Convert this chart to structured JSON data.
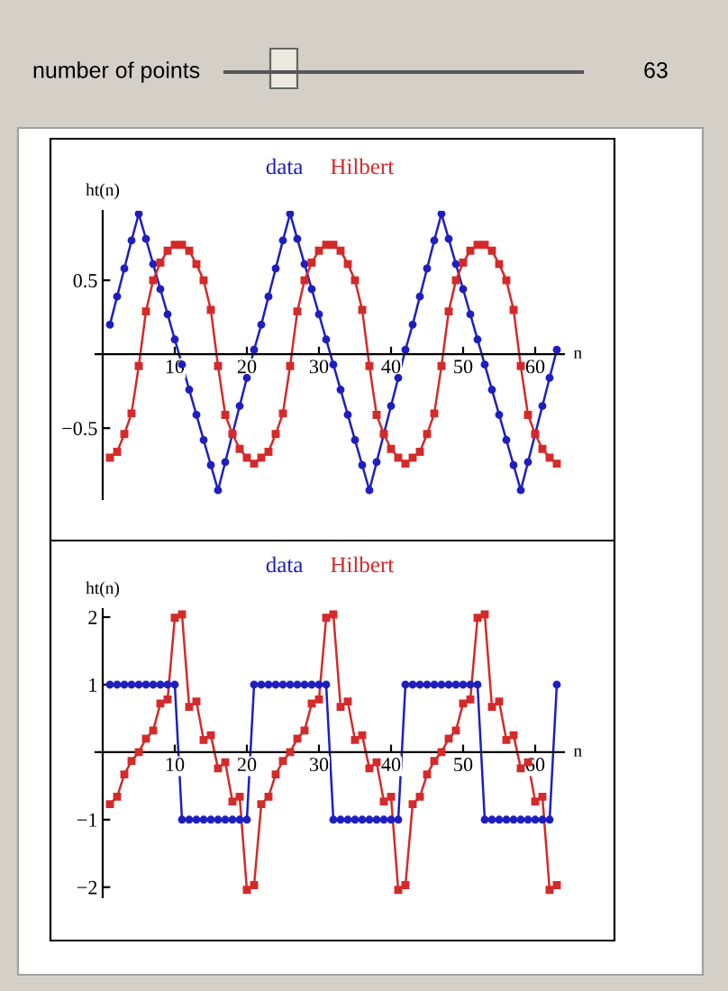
{
  "chart_data": [
    {
      "type": "line",
      "legend": "top",
      "ylabel": "ht(n)",
      "xlabel": "n",
      "grid": false,
      "annotations": [
        "number of points",
        "63"
      ],
      "x": [
        1,
        2,
        3,
        4,
        5,
        6,
        7,
        8,
        9,
        10,
        11,
        12,
        13,
        14,
        15,
        16,
        17,
        18,
        19,
        20,
        21,
        22,
        23,
        24,
        25,
        26,
        27,
        28,
        29,
        30,
        31,
        32,
        33,
        34,
        35,
        36,
        37,
        38,
        39,
        40,
        41,
        42,
        43,
        44,
        45,
        46,
        47,
        48,
        49,
        50,
        51,
        52,
        53,
        54,
        55,
        56,
        57,
        58,
        59,
        60,
        61,
        62,
        63
      ],
      "xlim": [
        -1,
        64
      ],
      "xticks": [
        10,
        20,
        30,
        40,
        50,
        60
      ],
      "ylim": [
        -0.98,
        0.97
      ],
      "yticks": [
        {
          "value": -0.5,
          "label": "−0.5"
        },
        0.5
      ],
      "series": [
        {
          "name": "data",
          "color": "#1f1fbf",
          "marker": "circle",
          "values": [
            0.2,
            0.39,
            0.58,
            0.77,
            0.95,
            0.78,
            0.61,
            0.44,
            0.27,
            0.1,
            -0.07,
            -0.24,
            -0.41,
            -0.58,
            -0.75,
            -0.92,
            -0.73,
            -0.54,
            -0.35,
            -0.16,
            0.03,
            0.2,
            0.39,
            0.58,
            0.77,
            0.95,
            0.78,
            0.61,
            0.44,
            0.27,
            0.1,
            -0.07,
            -0.24,
            -0.41,
            -0.58,
            -0.75,
            -0.92,
            -0.73,
            -0.54,
            -0.35,
            -0.16,
            0.03,
            0.2,
            0.39,
            0.58,
            0.77,
            0.95,
            0.78,
            0.61,
            0.44,
            0.27,
            0.1,
            -0.07,
            -0.24,
            -0.41,
            -0.58,
            -0.75,
            -0.92,
            -0.73,
            -0.54,
            -0.35,
            -0.16,
            0.03
          ]
        },
        {
          "name": "Hilbert",
          "color": "#d42a2a",
          "marker": "square",
          "values": [
            -0.7,
            -0.66,
            -0.54,
            -0.4,
            -0.08,
            0.29,
            0.5,
            0.62,
            0.7,
            0.74,
            0.74,
            0.7,
            0.61,
            0.5,
            0.3,
            -0.08,
            -0.41,
            -0.54,
            -0.64,
            -0.7,
            -0.74,
            -0.7,
            -0.66,
            -0.54,
            -0.4,
            -0.08,
            0.29,
            0.5,
            0.62,
            0.7,
            0.74,
            0.74,
            0.7,
            0.61,
            0.5,
            0.3,
            -0.08,
            -0.41,
            -0.54,
            -0.64,
            -0.7,
            -0.74,
            -0.7,
            -0.66,
            -0.54,
            -0.4,
            -0.08,
            0.29,
            0.5,
            0.62,
            0.7,
            0.74,
            0.74,
            0.7,
            0.61,
            0.5,
            0.3,
            -0.08,
            -0.41,
            -0.54,
            -0.64,
            -0.7,
            -0.74
          ]
        }
      ]
    },
    {
      "type": "line",
      "legend": "top",
      "ylabel": "ht(n)",
      "xlabel": "n",
      "grid": false,
      "x": [
        1,
        2,
        3,
        4,
        5,
        6,
        7,
        8,
        9,
        10,
        11,
        12,
        13,
        14,
        15,
        16,
        17,
        18,
        19,
        20,
        21,
        22,
        23,
        24,
        25,
        26,
        27,
        28,
        29,
        30,
        31,
        32,
        33,
        34,
        35,
        36,
        37,
        38,
        39,
        40,
        41,
        42,
        43,
        44,
        45,
        46,
        47,
        48,
        49,
        50,
        51,
        52,
        53,
        54,
        55,
        56,
        57,
        58,
        59,
        60,
        61,
        62,
        63
      ],
      "xlim": [
        -1,
        64
      ],
      "xticks": [
        10,
        20,
        30,
        40,
        50,
        60
      ],
      "ylim": [
        -2.15,
        2.12
      ],
      "yticks": [
        {
          "value": -2,
          "label": "−2"
        },
        {
          "value": -1,
          "label": "−1"
        },
        1,
        2
      ],
      "series": [
        {
          "name": "data",
          "color": "#1f1fbf",
          "marker": "circle",
          "values": [
            1,
            1,
            1,
            1,
            1,
            1,
            1,
            1,
            1,
            1,
            -1,
            -1,
            -1,
            -1,
            -1,
            -1,
            -1,
            -1,
            -1,
            -1,
            1,
            1,
            1,
            1,
            1,
            1,
            1,
            1,
            1,
            1,
            1,
            -1,
            -1,
            -1,
            -1,
            -1,
            -1,
            -1,
            -1,
            -1,
            -1,
            1,
            1,
            1,
            1,
            1,
            1,
            1,
            1,
            1,
            1,
            1,
            -1,
            -1,
            -1,
            -1,
            -1,
            -1,
            -1,
            -1,
            -1,
            -1,
            1
          ]
        },
        {
          "name": "Hilbert",
          "color": "#d42a2a",
          "marker": "square",
          "values": [
            -0.77,
            -0.66,
            -0.33,
            -0.13,
            0.0,
            0.2,
            0.32,
            0.72,
            0.78,
            1.99,
            2.04,
            0.67,
            0.75,
            0.18,
            0.25,
            -0.24,
            -0.15,
            -0.73,
            -0.66,
            -2.04,
            -1.97,
            -0.77,
            -0.66,
            -0.33,
            -0.13,
            0.0,
            0.2,
            0.32,
            0.72,
            0.78,
            1.99,
            2.04,
            0.67,
            0.75,
            0.18,
            0.25,
            -0.24,
            -0.15,
            -0.73,
            -0.66,
            -2.04,
            -1.97,
            -0.77,
            -0.66,
            -0.33,
            -0.13,
            0.0,
            0.2,
            0.32,
            0.72,
            0.78,
            1.99,
            2.04,
            0.67,
            0.75,
            0.18,
            0.25,
            -0.24,
            -0.15,
            -0.73,
            -0.66,
            -2.04,
            -1.97
          ]
        }
      ]
    }
  ]
}
